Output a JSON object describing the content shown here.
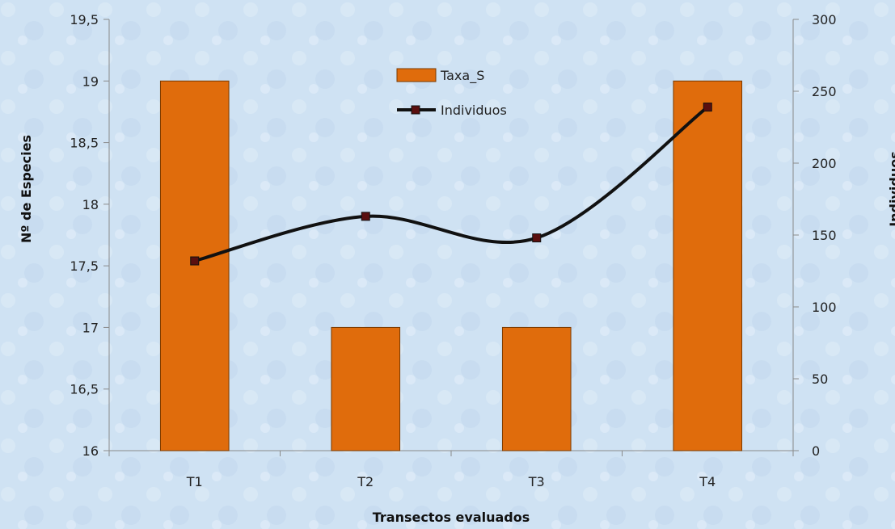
{
  "chart_data": {
    "type": "bar",
    "categories": [
      "T1",
      "T2",
      "T3",
      "T4"
    ],
    "series": [
      {
        "name": "Taxa_S",
        "type": "bar",
        "axis": "left",
        "values": [
          19,
          17,
          17,
          19
        ],
        "color": "#e06c0c"
      },
      {
        "name": "Individuos",
        "type": "line",
        "axis": "right",
        "values": [
          132,
          163,
          148,
          239
        ],
        "color": "#111111",
        "marker_color": "#5a0f0f"
      }
    ],
    "xlabel": "Transectos evaluados",
    "ylabel": "Nº de Especies",
    "y2label": "Individuos",
    "ylim": [
      16,
      19.5
    ],
    "y2lim": [
      0,
      300
    ],
    "yticks": [
      "16",
      "16,5",
      "17",
      "17,5",
      "18",
      "18,5",
      "19",
      "19,5"
    ],
    "y2ticks": [
      "0",
      "50",
      "100",
      "150",
      "200",
      "250",
      "300"
    ],
    "legend_position": "top-center",
    "grid": false
  }
}
